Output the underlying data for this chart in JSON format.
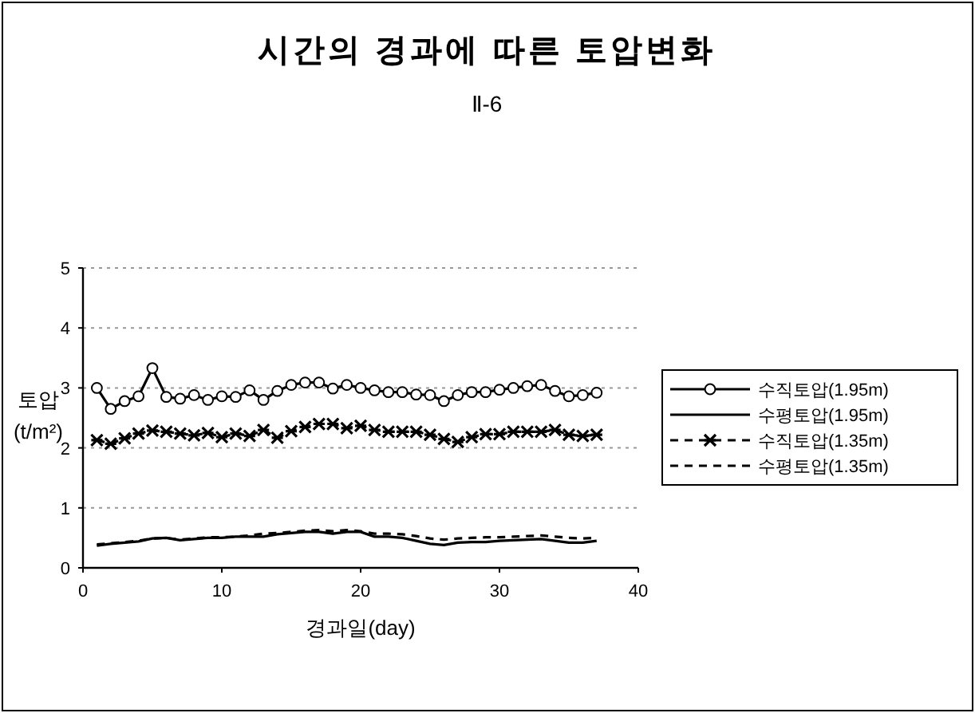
{
  "chart_data": {
    "type": "line",
    "title": "시간의 경과에 따른 토압변화",
    "subtitle": "Ⅱ-6",
    "xlabel": "경과일(day)",
    "ylabel": "토압 (t/m²)",
    "x": [
      1,
      2,
      3,
      4,
      5,
      6,
      7,
      8,
      9,
      10,
      11,
      12,
      13,
      14,
      15,
      16,
      17,
      18,
      19,
      20,
      21,
      22,
      23,
      24,
      25,
      26,
      27,
      28,
      29,
      30,
      31,
      32,
      33,
      34,
      35,
      36,
      37
    ],
    "xlim": [
      0,
      40
    ],
    "xticks": [
      0,
      10,
      20,
      30,
      40
    ],
    "ylim": [
      0,
      5
    ],
    "yticks": [
      0,
      1,
      2,
      3,
      4,
      5
    ],
    "grid": "y",
    "legend": "right",
    "series": [
      {
        "name": "수직토압(1.95m)",
        "color": "#000000",
        "marker": "circle",
        "line_style": "solid",
        "values": [
          3.0,
          2.65,
          2.78,
          2.86,
          3.33,
          2.85,
          2.82,
          2.88,
          2.8,
          2.86,
          2.85,
          2.96,
          2.8,
          2.95,
          3.05,
          3.09,
          3.09,
          2.99,
          3.05,
          3.0,
          2.96,
          2.93,
          2.93,
          2.89,
          2.88,
          2.78,
          2.88,
          2.93,
          2.93,
          2.97,
          3.0,
          3.03,
          3.05,
          2.95,
          2.86,
          2.88,
          2.92
        ]
      },
      {
        "name": "수평토압(1.95m)",
        "color": "#000000",
        "marker": "none",
        "line_style": "solid",
        "values": [
          0.37,
          0.4,
          0.42,
          0.44,
          0.49,
          0.5,
          0.46,
          0.48,
          0.5,
          0.5,
          0.52,
          0.52,
          0.52,
          0.56,
          0.58,
          0.6,
          0.6,
          0.57,
          0.6,
          0.6,
          0.52,
          0.52,
          0.5,
          0.45,
          0.4,
          0.38,
          0.42,
          0.43,
          0.43,
          0.45,
          0.46,
          0.47,
          0.48,
          0.45,
          0.42,
          0.42,
          0.45
        ]
      },
      {
        "name": "수직토압(1.35m)",
        "color": "#000000",
        "marker": "cross",
        "line_style": "dashed",
        "values": [
          2.13,
          2.07,
          2.16,
          2.24,
          2.29,
          2.27,
          2.24,
          2.21,
          2.25,
          2.18,
          2.24,
          2.2,
          2.3,
          2.17,
          2.28,
          2.35,
          2.4,
          2.4,
          2.33,
          2.37,
          2.3,
          2.27,
          2.27,
          2.27,
          2.22,
          2.15,
          2.1,
          2.18,
          2.23,
          2.23,
          2.27,
          2.27,
          2.27,
          2.3,
          2.22,
          2.2,
          2.22
        ]
      },
      {
        "name": "수평토압(1.35m)",
        "color": "#000000",
        "marker": "none",
        "line_style": "dashed",
        "values": [
          0.39,
          0.41,
          0.43,
          0.45,
          0.49,
          0.5,
          0.47,
          0.49,
          0.51,
          0.51,
          0.52,
          0.54,
          0.57,
          0.58,
          0.6,
          0.62,
          0.63,
          0.61,
          0.63,
          0.61,
          0.57,
          0.57,
          0.56,
          0.53,
          0.49,
          0.47,
          0.49,
          0.5,
          0.51,
          0.51,
          0.52,
          0.53,
          0.54,
          0.52,
          0.5,
          0.49,
          0.5
        ]
      }
    ]
  }
}
